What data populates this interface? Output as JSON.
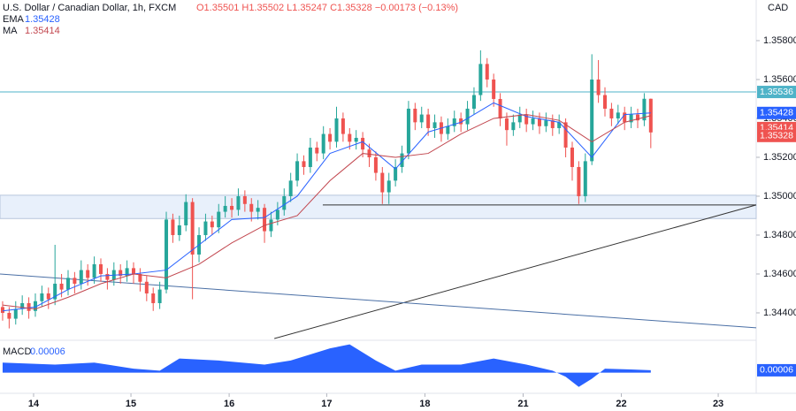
{
  "chart_data": {
    "type": "candlestick",
    "title": "U.S. Dollar / Canadian Dollar, 1h, FXCM",
    "ohlc_text": "O1.35501 H1.35502 L1.35247 C1.35328 −0.00173 (−0.13%)",
    "currency": "CAD",
    "up_color": "#26a69a",
    "down_color": "#ef5350",
    "open": [
      1.3443,
      1.344,
      1.3437,
      1.3442,
      1.3445,
      1.3441,
      1.3446,
      1.345,
      1.3447,
      1.3455,
      1.3452,
      1.3458,
      1.3455,
      1.3462,
      1.3458,
      1.3465,
      1.346,
      1.3457,
      1.3462,
      1.3459,
      1.3463,
      1.346,
      1.3456,
      1.345,
      1.3445,
      1.3452,
      1.3488,
      1.348,
      1.3485,
      1.3497,
      1.347,
      1.348,
      1.3487,
      1.3484,
      1.3492,
      1.3495,
      1.3493,
      1.35,
      1.3496,
      1.3492,
      1.3494,
      1.3482,
      1.3488,
      1.3493,
      1.35,
      1.3508,
      1.3518,
      1.3515,
      1.3525,
      1.3522,
      1.3532,
      1.3528,
      1.354,
      1.3532,
      1.3528,
      1.353,
      1.3524,
      1.352,
      1.3512,
      1.3502,
      1.3508,
      1.3515,
      1.3522,
      1.3545,
      1.3538,
      1.3542,
      1.3535,
      1.3538,
      1.3532,
      1.3536,
      1.354,
      1.3537,
      1.3545,
      1.3552,
      1.3568,
      1.356,
      1.355,
      1.354,
      1.3534,
      1.3538,
      1.3542,
      1.3537,
      1.354,
      1.3536,
      1.3539,
      1.3535,
      1.3538,
      1.3525,
      1.3515,
      1.35,
      1.3518,
      1.356,
      1.3552,
      1.3545,
      1.354,
      1.3543,
      1.3538,
      1.3542,
      1.3539,
      1.35501
    ],
    "high": [
      1.3446,
      1.3443,
      1.3446,
      1.3449,
      1.3448,
      1.345,
      1.3454,
      1.3453,
      1.3475,
      1.346,
      1.3462,
      1.3461,
      1.3467,
      1.3465,
      1.3469,
      1.3468,
      1.3463,
      1.3466,
      1.3465,
      1.3467,
      1.3466,
      1.3463,
      1.3459,
      1.3453,
      1.3456,
      1.3492,
      1.3491,
      1.349,
      1.3501,
      1.3499,
      1.3484,
      1.3491,
      1.349,
      1.3496,
      1.35,
      1.3499,
      1.3504,
      1.3503,
      1.3499,
      1.3498,
      1.3496,
      1.3492,
      1.3497,
      1.3504,
      1.3512,
      1.3522,
      1.3521,
      1.353,
      1.3528,
      1.3536,
      1.3535,
      1.3546,
      1.3543,
      1.3535,
      1.3534,
      1.3533,
      1.3527,
      1.3523,
      1.3515,
      1.3512,
      1.3519,
      1.3526,
      1.3549,
      1.3548,
      1.3546,
      1.3545,
      1.3542,
      1.3541,
      1.354,
      1.3544,
      1.3543,
      1.3549,
      1.3556,
      1.3575,
      1.3571,
      1.3563,
      1.3553,
      1.3543,
      1.3542,
      1.3546,
      1.3545,
      1.3544,
      1.3543,
      1.3543,
      1.3542,
      1.3542,
      1.354,
      1.3528,
      1.3518,
      1.3522,
      1.3573,
      1.357,
      1.3556,
      1.3548,
      1.3547,
      1.3546,
      1.3546,
      1.3545,
      1.3553,
      1.35502
    ],
    "low": [
      1.3436,
      1.3432,
      1.3434,
      1.3439,
      1.3437,
      1.3438,
      1.3443,
      1.3442,
      1.3444,
      1.3448,
      1.3449,
      1.345,
      1.3452,
      1.3454,
      1.3455,
      1.3456,
      1.3452,
      1.3454,
      1.3455,
      1.3456,
      1.3455,
      1.3451,
      1.3446,
      1.3441,
      1.3442,
      1.345,
      1.3476,
      1.3477,
      1.3482,
      1.3447,
      1.3466,
      1.3477,
      1.348,
      1.3481,
      1.3489,
      1.3489,
      1.349,
      1.3492,
      1.3487,
      1.3488,
      1.3476,
      1.3479,
      1.3485,
      1.349,
      1.3497,
      1.3505,
      1.3511,
      1.3512,
      1.3518,
      1.3519,
      1.3524,
      1.3525,
      1.3528,
      1.3524,
      1.3524,
      1.352,
      1.3515,
      1.3508,
      1.3496,
      1.3496,
      1.3505,
      1.3512,
      1.3519,
      1.3534,
      1.3535,
      1.3531,
      1.353,
      1.3528,
      1.3529,
      1.3533,
      1.3533,
      1.3534,
      1.3542,
      1.3549,
      1.3556,
      1.3546,
      1.3536,
      1.3526,
      1.3531,
      1.3535,
      1.3533,
      1.3534,
      1.3532,
      1.3533,
      1.3531,
      1.3532,
      1.352,
      1.3508,
      1.3496,
      1.3497,
      1.3516,
      1.3548,
      1.3541,
      1.3536,
      1.3537,
      1.3534,
      1.3535,
      1.3535,
      1.3536,
      1.35247
    ],
    "close": [
      1.344,
      1.3437,
      1.3442,
      1.3445,
      1.3441,
      1.3446,
      1.345,
      1.3447,
      1.3455,
      1.3452,
      1.3458,
      1.3455,
      1.3462,
      1.3458,
      1.3465,
      1.346,
      1.3457,
      1.3462,
      1.3459,
      1.3463,
      1.346,
      1.3456,
      1.345,
      1.3445,
      1.3452,
      1.3488,
      1.348,
      1.3485,
      1.3497,
      1.347,
      1.348,
      1.3487,
      1.3484,
      1.3492,
      1.3495,
      1.3493,
      1.35,
      1.3496,
      1.3492,
      1.3494,
      1.3482,
      1.3488,
      1.3493,
      1.35,
      1.3508,
      1.3518,
      1.3515,
      1.3525,
      1.3522,
      1.3532,
      1.3528,
      1.354,
      1.3532,
      1.3528,
      1.353,
      1.3524,
      1.352,
      1.3512,
      1.3502,
      1.3508,
      1.3515,
      1.3522,
      1.3545,
      1.3538,
      1.3542,
      1.3535,
      1.3538,
      1.3532,
      1.3536,
      1.354,
      1.3537,
      1.3545,
      1.3552,
      1.3568,
      1.356,
      1.355,
      1.354,
      1.3534,
      1.3538,
      1.3542,
      1.3537,
      1.354,
      1.3536,
      1.3539,
      1.3535,
      1.3538,
      1.3525,
      1.3515,
      1.35,
      1.3518,
      1.356,
      1.3552,
      1.3545,
      1.354,
      1.3543,
      1.3538,
      1.3542,
      1.3539,
      1.35501,
      1.35328
    ],
    "series": [
      {
        "name": "EMA",
        "color": "#2962ff",
        "x": [
          0,
          5,
          10,
          15,
          20,
          25,
          30,
          35,
          40,
          45,
          50,
          55,
          60,
          65,
          70,
          75,
          80,
          85,
          90,
          95,
          99
        ],
        "values": [
          1.3441,
          1.3443,
          1.3452,
          1.3459,
          1.346,
          1.3462,
          1.3475,
          1.3488,
          1.3489,
          1.35,
          1.3522,
          1.3528,
          1.3514,
          1.3533,
          1.3538,
          1.3548,
          1.3541,
          1.3538,
          1.352,
          1.3542,
          1.35428
        ]
      },
      {
        "name": "MA",
        "color": "#c2474f",
        "x": [
          0,
          5,
          10,
          15,
          20,
          25,
          30,
          35,
          40,
          45,
          50,
          55,
          60,
          65,
          70,
          75,
          80,
          85,
          90,
          95,
          99
        ],
        "values": [
          1.3444,
          1.3442,
          1.3448,
          1.3455,
          1.346,
          1.3458,
          1.3465,
          1.3476,
          1.3485,
          1.349,
          1.3508,
          1.3522,
          1.352,
          1.3522,
          1.3532,
          1.354,
          1.3542,
          1.3539,
          1.3528,
          1.3538,
          1.35414
        ]
      }
    ],
    "hline": {
      "value": 1.35536,
      "color": "#4fb3c8"
    },
    "zone": {
      "values": [
        1.34885,
        1.35005
      ],
      "color": "#e8f0fb"
    },
    "lines": [
      {
        "x": [
          48.9,
          115.1
        ],
        "values": [
          1.34955,
          1.34955
        ],
        "color": "#333333"
      },
      {
        "x": [
          41.5,
          115.1
        ],
        "values": [
          1.34268,
          1.34955
        ],
        "color": "#333333"
      },
      {
        "x": [
          -0.4,
          115.1
        ],
        "values": [
          1.346,
          1.34323
        ],
        "color": "#4a6fa5"
      }
    ],
    "xlim": [
      -0.4,
      115.1
    ],
    "xticks": [
      {
        "value": 4.73,
        "label": "14"
      },
      {
        "value": 19.6,
        "label": "15"
      },
      {
        "value": 34.6,
        "label": "16"
      },
      {
        "value": 49.5,
        "label": "17"
      },
      {
        "value": 64.5,
        "label": "18"
      },
      {
        "value": 79.5,
        "label": "21"
      },
      {
        "value": 94.5,
        "label": "22"
      },
      {
        "value": 109.3,
        "label": "23"
      }
    ],
    "ylim": [
      1.34259,
      1.35918
    ],
    "yticks": [
      {
        "value": 1.344,
        "label": "1.34400"
      },
      {
        "value": 1.346,
        "label": "1.34600"
      },
      {
        "value": 1.348,
        "label": "1.34800"
      },
      {
        "value": 1.35,
        "label": "1.35000"
      },
      {
        "value": 1.352,
        "label": "1.35200"
      },
      {
        "value": 1.354,
        "label": "1.35400"
      },
      {
        "value": 1.356,
        "label": "1.35600"
      },
      {
        "value": 1.358,
        "label": "1.35800"
      }
    ],
    "macd": {
      "name": "MACD",
      "color": "#2962ff",
      "x": [
        0,
        8,
        14,
        20,
        24,
        27,
        33,
        40,
        44,
        50,
        53,
        57,
        60,
        64,
        70,
        75,
        80,
        84,
        86,
        88,
        90,
        92,
        96,
        99
      ],
      "values": [
        0.00025,
        0.0002,
        0.00025,
        0.0001,
        5e-05,
        0.00035,
        0.0003,
        0.0002,
        0.0003,
        0.0006,
        0.0007,
        0.0003,
        5e-05,
        0.0002,
        0.0002,
        0.00035,
        0.0002,
        5e-05,
        -0.0001,
        -0.00035,
        -0.00015,
        0.0001,
        8e-05,
        6e-05
      ],
      "ylim": [
        -0.0004,
        0.0008
      ]
    }
  }
}
